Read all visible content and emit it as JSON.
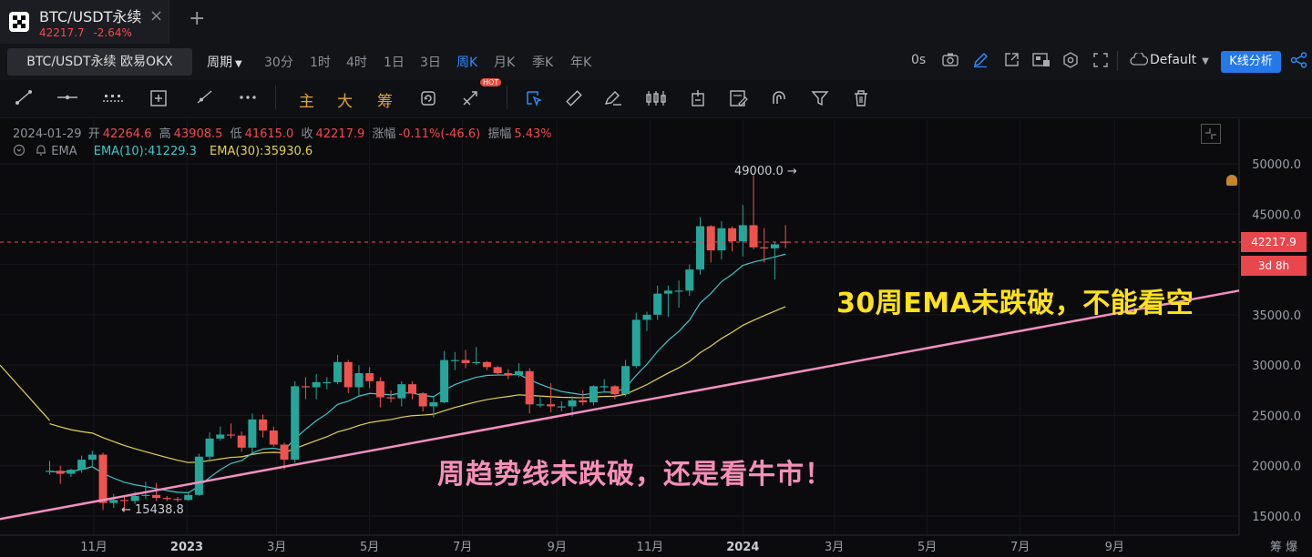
{
  "tab": {
    "title": "BTC/USDT永续",
    "price": "42217.7",
    "change": "-2.64%",
    "close": "×",
    "add": "+"
  },
  "toolbar": {
    "symbol": "BTC/USDT永续 欧易OKX",
    "period_label": "周期",
    "timeframes": [
      "30分",
      "1时",
      "4时",
      "1日",
      "3日",
      "周K",
      "月K",
      "季K",
      "年K"
    ],
    "active_timeframe": "周K",
    "countdown": "0s",
    "layout": "Default",
    "analysis_button": "K线分析"
  },
  "drawing_tools": {
    "main_label": "主",
    "large_label": "大",
    "chips_label": "筹",
    "hot_badge": "HOT"
  },
  "ohlc": {
    "date": "2024-01-29",
    "open_label": "开",
    "open": "42264.6",
    "high_label": "高",
    "high": "43908.5",
    "low_label": "低",
    "low": "41615.0",
    "close_label": "收",
    "close": "42217.9",
    "change_label": "涨幅",
    "change": "-0.11%(-46.6)",
    "amp_label": "振幅",
    "amp": "5.43%"
  },
  "indicator": {
    "name": "EMA",
    "ema10": "EMA(10):41229.3",
    "ema30": "EMA(30):35930.6"
  },
  "chart_data": {
    "type": "candlestick",
    "ylim": [
      14000,
      53500
    ],
    "y_ticks": [
      "50000.0",
      "45000.0",
      "40000.0",
      "35000.0",
      "30000.0",
      "25000.0",
      "20000.0",
      "15000.0"
    ],
    "x_ticks": [
      "11月",
      "2023",
      "3月",
      "5月",
      "7月",
      "9月",
      "11月",
      "2024",
      "3月",
      "5月",
      "7月",
      "9月"
    ],
    "x_tick_dates": [
      "2022-11-01",
      "2023-01-01",
      "2023-03-01",
      "2023-05-01",
      "2023-07-01",
      "2023-09-01",
      "2023-11-01",
      "2024-01-01",
      "2024-03-01",
      "2024-05-01",
      "2024-07-01",
      "2024-09-01"
    ],
    "last_price": "42217.9",
    "countdown": "3d 8h",
    "high_marker": "49000.0",
    "low_marker": "15438.8",
    "annotation_ema": "30周EMA未跌破，不能看空",
    "annotation_trend": "周趋势线未跌破，还是看牛市！",
    "colors": {
      "up": "#26a69a",
      "down": "#ef5350",
      "ema10": "#3fc7c7",
      "ema30": "#e3d44a",
      "trendline": "#f48fc0"
    },
    "candles": [
      {
        "t": "2022-10-03",
        "o": 19400,
        "h": 20500,
        "l": 19100,
        "c": 19500
      },
      {
        "t": "2022-10-10",
        "o": 19500,
        "h": 20000,
        "l": 18200,
        "c": 19200
      },
      {
        "t": "2022-10-17",
        "o": 19200,
        "h": 19700,
        "l": 18900,
        "c": 19600
      },
      {
        "t": "2022-10-24",
        "o": 19600,
        "h": 21000,
        "l": 19300,
        "c": 20600
      },
      {
        "t": "2022-10-31",
        "o": 20600,
        "h": 21500,
        "l": 20000,
        "c": 21100
      },
      {
        "t": "2022-11-07",
        "o": 21100,
        "h": 21300,
        "l": 15600,
        "c": 16300
      },
      {
        "t": "2022-11-14",
        "o": 16300,
        "h": 17200,
        "l": 15800,
        "c": 16600
      },
      {
        "t": "2022-11-21",
        "o": 16600,
        "h": 16900,
        "l": 15500,
        "c": 16500
      },
      {
        "t": "2022-11-28",
        "o": 16500,
        "h": 17400,
        "l": 16200,
        "c": 17000
      },
      {
        "t": "2022-12-05",
        "o": 17000,
        "h": 18400,
        "l": 16700,
        "c": 17100
      },
      {
        "t": "2022-12-12",
        "o": 17100,
        "h": 18300,
        "l": 16500,
        "c": 16800
      },
      {
        "t": "2022-12-19",
        "o": 16800,
        "h": 17000,
        "l": 16500,
        "c": 16700
      },
      {
        "t": "2022-12-26",
        "o": 16700,
        "h": 16900,
        "l": 16400,
        "c": 16600
      },
      {
        "t": "2023-01-02",
        "o": 16600,
        "h": 17300,
        "l": 16500,
        "c": 17100
      },
      {
        "t": "2023-01-09",
        "o": 17100,
        "h": 21200,
        "l": 17000,
        "c": 20900
      },
      {
        "t": "2023-01-16",
        "o": 20900,
        "h": 23300,
        "l": 20400,
        "c": 22700
      },
      {
        "t": "2023-01-23",
        "o": 22700,
        "h": 23900,
        "l": 22500,
        "c": 23100
      },
      {
        "t": "2023-01-30",
        "o": 23100,
        "h": 24200,
        "l": 22700,
        "c": 23000
      },
      {
        "t": "2023-02-06",
        "o": 23000,
        "h": 23400,
        "l": 21400,
        "c": 21800
      },
      {
        "t": "2023-02-13",
        "o": 21800,
        "h": 25200,
        "l": 21300,
        "c": 24600
      },
      {
        "t": "2023-02-20",
        "o": 24600,
        "h": 25100,
        "l": 22800,
        "c": 23500
      },
      {
        "t": "2023-02-27",
        "o": 23500,
        "h": 23900,
        "l": 21900,
        "c": 22100
      },
      {
        "t": "2023-03-06",
        "o": 22100,
        "h": 22300,
        "l": 19600,
        "c": 20600
      },
      {
        "t": "2023-03-13",
        "o": 20600,
        "h": 28400,
        "l": 20300,
        "c": 27900
      },
      {
        "t": "2023-03-20",
        "o": 27900,
        "h": 28800,
        "l": 26600,
        "c": 27800
      },
      {
        "t": "2023-03-27",
        "o": 27800,
        "h": 29100,
        "l": 26600,
        "c": 28300
      },
      {
        "t": "2023-04-03",
        "o": 28300,
        "h": 28800,
        "l": 27600,
        "c": 28300
      },
      {
        "t": "2023-04-10",
        "o": 28300,
        "h": 31000,
        "l": 28100,
        "c": 30300
      },
      {
        "t": "2023-04-17",
        "o": 30300,
        "h": 30500,
        "l": 27200,
        "c": 27800
      },
      {
        "t": "2023-04-24",
        "o": 27800,
        "h": 30000,
        "l": 26900,
        "c": 29200
      },
      {
        "t": "2023-05-01",
        "o": 29200,
        "h": 29800,
        "l": 27700,
        "c": 28400
      },
      {
        "t": "2023-05-08",
        "o": 28400,
        "h": 28800,
        "l": 25800,
        "c": 26800
      },
      {
        "t": "2023-05-15",
        "o": 26800,
        "h": 27500,
        "l": 26300,
        "c": 26700
      },
      {
        "t": "2023-05-22",
        "o": 26700,
        "h": 28400,
        "l": 25900,
        "c": 28100
      },
      {
        "t": "2023-05-29",
        "o": 28100,
        "h": 28400,
        "l": 26600,
        "c": 27200
      },
      {
        "t": "2023-06-05",
        "o": 27200,
        "h": 27300,
        "l": 25400,
        "c": 25900
      },
      {
        "t": "2023-06-12",
        "o": 25900,
        "h": 26800,
        "l": 24800,
        "c": 26300
      },
      {
        "t": "2023-06-19",
        "o": 26300,
        "h": 31400,
        "l": 26200,
        "c": 30500
      },
      {
        "t": "2023-06-26",
        "o": 30500,
        "h": 31300,
        "l": 29500,
        "c": 30500
      },
      {
        "t": "2023-07-03",
        "o": 30500,
        "h": 31500,
        "l": 29700,
        "c": 30200
      },
      {
        "t": "2023-07-10",
        "o": 30200,
        "h": 31800,
        "l": 30000,
        "c": 30300
      },
      {
        "t": "2023-07-17",
        "o": 30300,
        "h": 30400,
        "l": 29500,
        "c": 29800
      },
      {
        "t": "2023-07-24",
        "o": 29800,
        "h": 29900,
        "l": 29000,
        "c": 29200
      },
      {
        "t": "2023-07-31",
        "o": 29200,
        "h": 29600,
        "l": 28600,
        "c": 29000
      },
      {
        "t": "2023-08-07",
        "o": 29000,
        "h": 30200,
        "l": 28800,
        "c": 29400
      },
      {
        "t": "2023-08-14",
        "o": 29400,
        "h": 29700,
        "l": 25200,
        "c": 26100
      },
      {
        "t": "2023-08-21",
        "o": 26100,
        "h": 26800,
        "l": 25800,
        "c": 26100
      },
      {
        "t": "2023-08-28",
        "o": 26100,
        "h": 28200,
        "l": 25300,
        "c": 25900
      },
      {
        "t": "2023-09-04",
        "o": 25900,
        "h": 26400,
        "l": 25400,
        "c": 25900
      },
      {
        "t": "2023-09-11",
        "o": 25900,
        "h": 26900,
        "l": 24900,
        "c": 26500
      },
      {
        "t": "2023-09-18",
        "o": 26500,
        "h": 27500,
        "l": 26000,
        "c": 26300
      },
      {
        "t": "2023-09-25",
        "o": 26300,
        "h": 28000,
        "l": 26000,
        "c": 27900
      },
      {
        "t": "2023-10-02",
        "o": 27900,
        "h": 28600,
        "l": 27300,
        "c": 27900
      },
      {
        "t": "2023-10-09",
        "o": 27900,
        "h": 28000,
        "l": 26600,
        "c": 27100
      },
      {
        "t": "2023-10-16",
        "o": 27100,
        "h": 30500,
        "l": 26900,
        "c": 29900
      },
      {
        "t": "2023-10-23",
        "o": 29900,
        "h": 35200,
        "l": 29700,
        "c": 34500
      },
      {
        "t": "2023-10-30",
        "o": 34500,
        "h": 35300,
        "l": 33400,
        "c": 35000
      },
      {
        "t": "2023-11-06",
        "o": 35000,
        "h": 37900,
        "l": 34500,
        "c": 37100
      },
      {
        "t": "2023-11-13",
        "o": 37100,
        "h": 37900,
        "l": 34800,
        "c": 37400
      },
      {
        "t": "2023-11-20",
        "o": 37400,
        "h": 38400,
        "l": 35700,
        "c": 37400
      },
      {
        "t": "2023-11-27",
        "o": 37400,
        "h": 40000,
        "l": 36900,
        "c": 39500
      },
      {
        "t": "2023-12-04",
        "o": 39500,
        "h": 44700,
        "l": 39000,
        "c": 43800
      },
      {
        "t": "2023-12-11",
        "o": 43800,
        "h": 43900,
        "l": 40200,
        "c": 41400
      },
      {
        "t": "2023-12-18",
        "o": 41400,
        "h": 44300,
        "l": 40500,
        "c": 43600
      },
      {
        "t": "2023-12-25",
        "o": 43600,
        "h": 43800,
        "l": 41300,
        "c": 42300
      },
      {
        "t": "2024-01-01",
        "o": 42300,
        "h": 45900,
        "l": 40800,
        "c": 43900
      },
      {
        "t": "2024-01-08",
        "o": 43900,
        "h": 49000,
        "l": 41500,
        "c": 41700
      },
      {
        "t": "2024-01-15",
        "o": 41700,
        "h": 43600,
        "l": 40200,
        "c": 41600
      },
      {
        "t": "2024-01-22",
        "o": 41600,
        "h": 42200,
        "l": 38500,
        "c": 42000
      },
      {
        "t": "2024-01-29",
        "o": 42264.6,
        "h": 43908.5,
        "l": 41615.0,
        "c": 42217.9
      }
    ]
  }
}
